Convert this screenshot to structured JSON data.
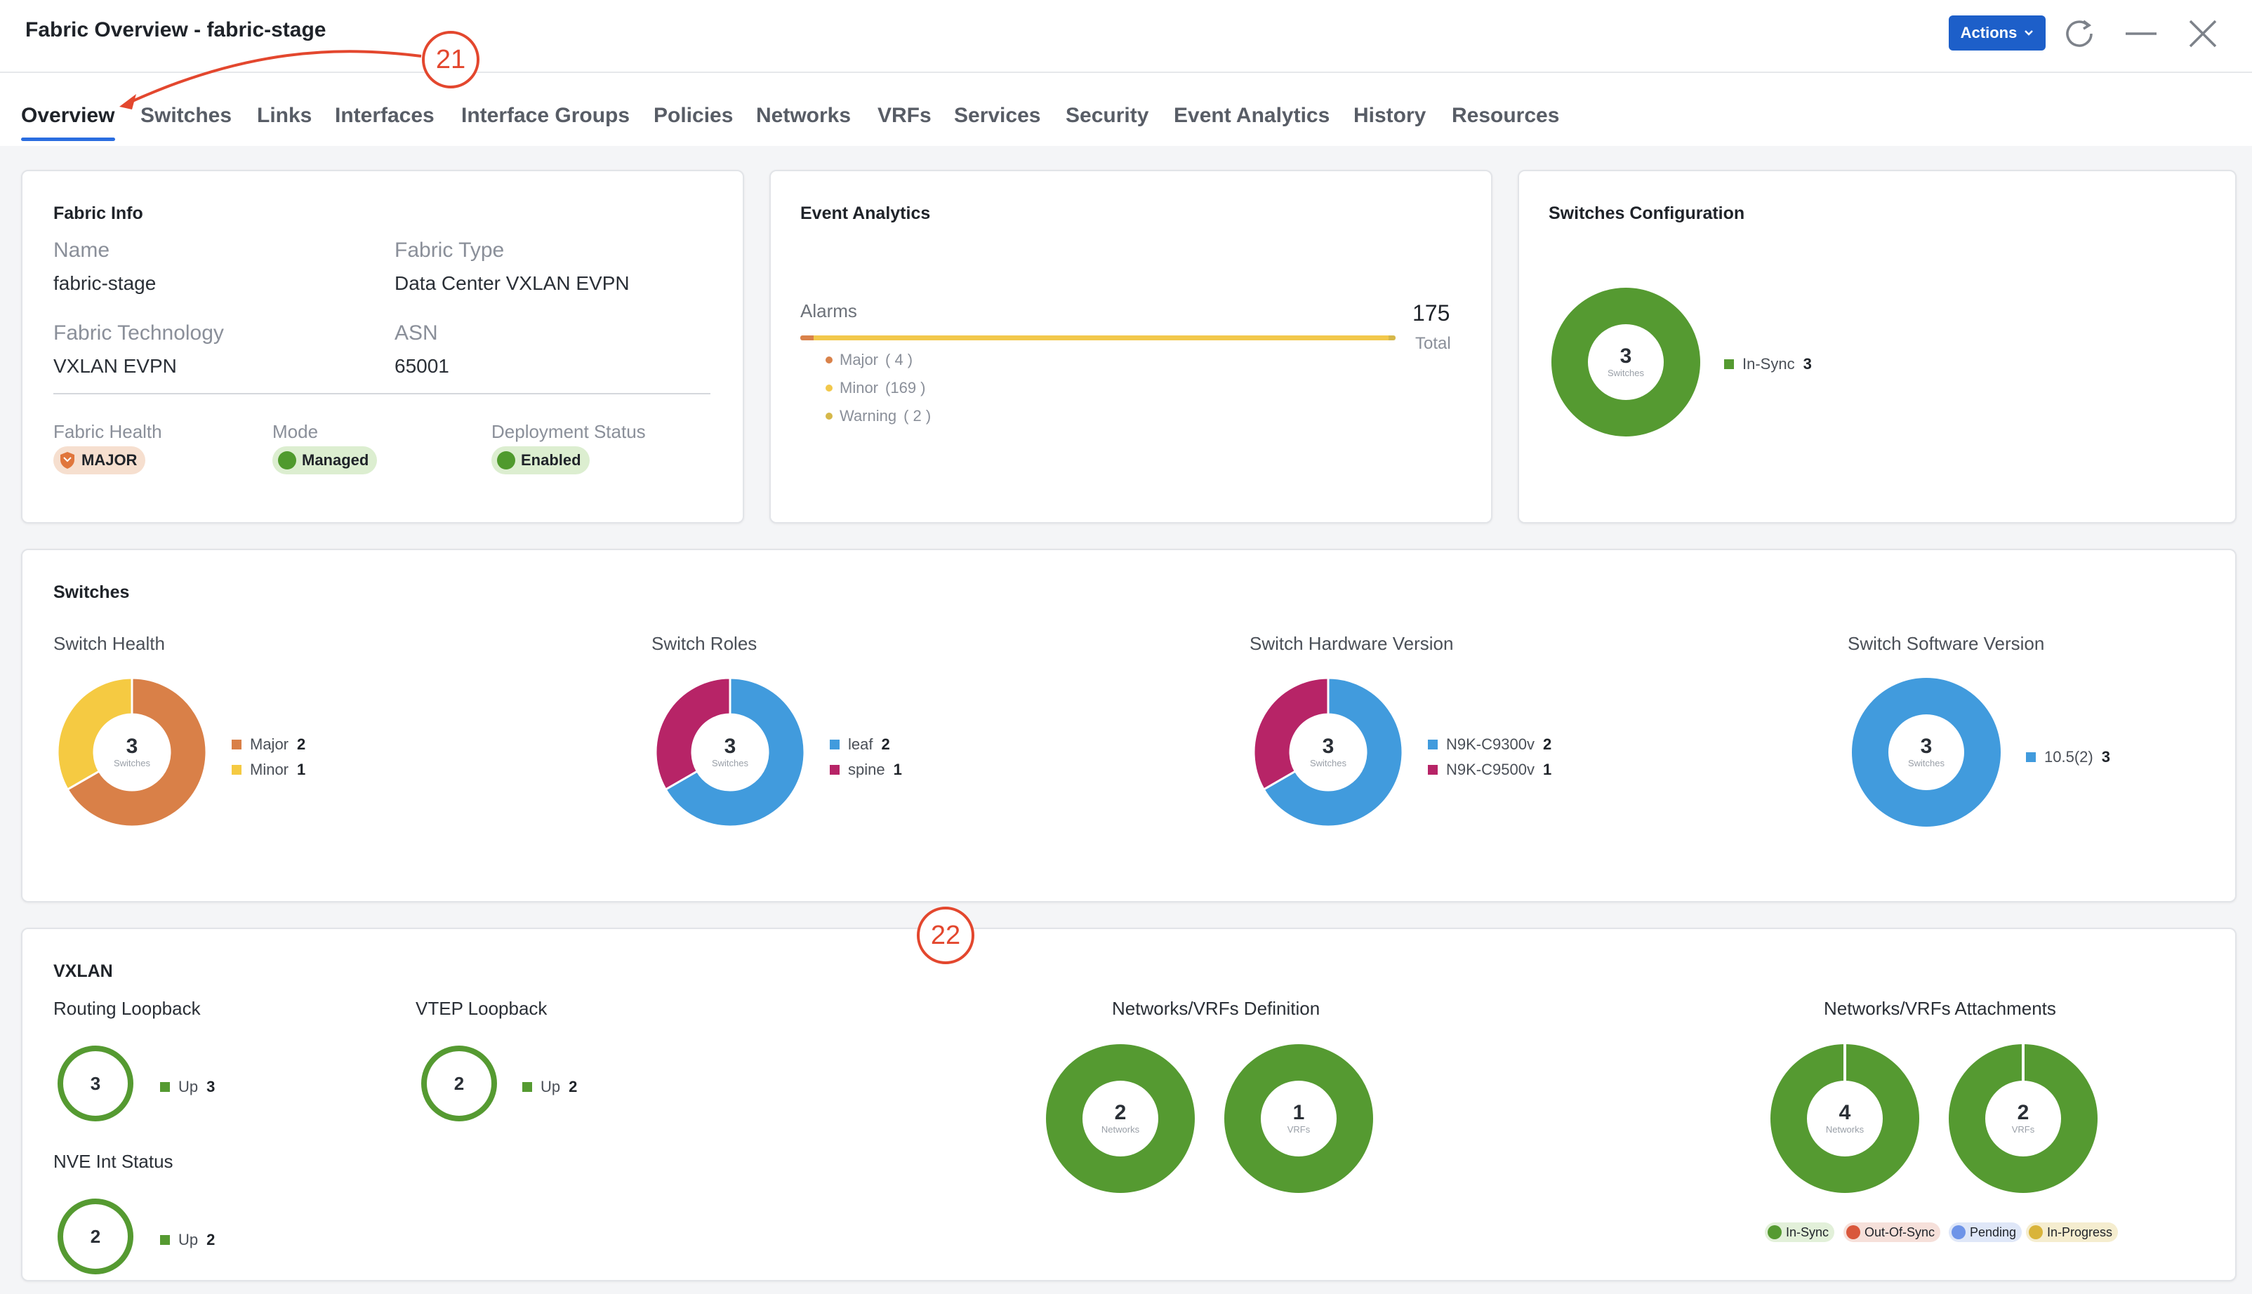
{
  "window": {
    "title": "Fabric Overview - fabric-stage",
    "actions_label": "Actions"
  },
  "tabs": [
    "Overview",
    "Switches",
    "Links",
    "Interfaces",
    "Interface Groups",
    "Policies",
    "Networks",
    "VRFs",
    "Services",
    "Security",
    "Event Analytics",
    "History",
    "Resources"
  ],
  "callouts": [
    "21",
    "22"
  ],
  "fabric_info": {
    "title": "Fabric Info",
    "name_label": "Name",
    "name_value": "fabric-stage",
    "type_label": "Fabric Type",
    "type_value": "Data Center VXLAN EVPN",
    "tech_label": "Fabric Technology",
    "tech_value": "VXLAN EVPN",
    "asn_label": "ASN",
    "asn_value": "65001",
    "health_label": "Fabric Health",
    "health_value": "MAJOR",
    "mode_label": "Mode",
    "mode_value": "Managed",
    "deploy_label": "Deployment Status",
    "deploy_value": "Enabled"
  },
  "event_analytics": {
    "title": "Event Analytics",
    "alarms_label": "Alarms",
    "total_value": "175",
    "total_label": "Total",
    "items": [
      {
        "label": "Major",
        "count": "( 4 )",
        "color": "#d9824a",
        "value": 4
      },
      {
        "label": "Minor",
        "count": "(169 )",
        "color": "#f2c84b",
        "value": 169
      },
      {
        "label": "Warning",
        "count": "( 2 )",
        "color": "#d6b84a",
        "value": 2
      }
    ]
  },
  "switches_config": {
    "title": "Switches Configuration",
    "center_value": "3",
    "center_label": "Switches",
    "legend": [
      {
        "label": "In-Sync",
        "value": "3",
        "color": "#559a31"
      }
    ]
  },
  "switches": {
    "title": "Switches",
    "charts": [
      {
        "title": "Switch Health",
        "center": "3",
        "center_label": "Switches",
        "slices": [
          {
            "label": "Major",
            "value": 2,
            "color": "#d98048"
          },
          {
            "label": "Minor",
            "value": 1,
            "color": "#f5ca42"
          }
        ]
      },
      {
        "title": "Switch Roles",
        "center": "3",
        "center_label": "Switches",
        "slices": [
          {
            "label": "leaf",
            "value": 2,
            "color": "#419bdd"
          },
          {
            "label": "spine",
            "value": 1,
            "color": "#b72467"
          }
        ]
      },
      {
        "title": "Switch Hardware Version",
        "center": "3",
        "center_label": "Switches",
        "slices": [
          {
            "label": "N9K-C9300v",
            "value": 2,
            "color": "#419bdd"
          },
          {
            "label": "N9K-C9500v",
            "value": 1,
            "color": "#b72467"
          }
        ]
      },
      {
        "title": "Switch Software Version",
        "center": "3",
        "center_label": "Switches",
        "slices": [
          {
            "label": "10.5(2)",
            "value": 3,
            "color": "#419bdd"
          }
        ]
      }
    ]
  },
  "vxlan": {
    "title": "VXLAN",
    "routing": {
      "title": "Routing Loopback",
      "center": "3",
      "legend_label": "Up",
      "legend_value": "3"
    },
    "vtep": {
      "title": "VTEP Loopback",
      "center": "2",
      "legend_label": "Up",
      "legend_value": "2"
    },
    "nve": {
      "title": "NVE Int Status",
      "center": "2",
      "legend_label": "Up",
      "legend_value": "2"
    },
    "definition": {
      "title": "Networks/VRFs Definition",
      "donuts": [
        {
          "center": "2",
          "label": "Networks"
        },
        {
          "center": "1",
          "label": "VRFs"
        }
      ]
    },
    "attachments": {
      "title": "Networks/VRFs Attachments",
      "donuts": [
        {
          "center": "4",
          "label": "Networks"
        },
        {
          "center": "2",
          "label": "VRFs"
        }
      ]
    },
    "status_legend": [
      {
        "label": "In-Sync",
        "color": "#559a31",
        "bg": "#e2f0d9"
      },
      {
        "label": "Out-Of-Sync",
        "color": "#d9573b",
        "bg": "#f6e0da"
      },
      {
        "label": "Pending",
        "color": "#6e94e8",
        "bg": "#dfe7f8"
      },
      {
        "label": "In-Progress",
        "color": "#d9b43a",
        "bg": "#f5edcf"
      }
    ]
  },
  "colors": {
    "accent": "#1d5fc9",
    "green": "#559a31",
    "callout": "#e3472e"
  }
}
